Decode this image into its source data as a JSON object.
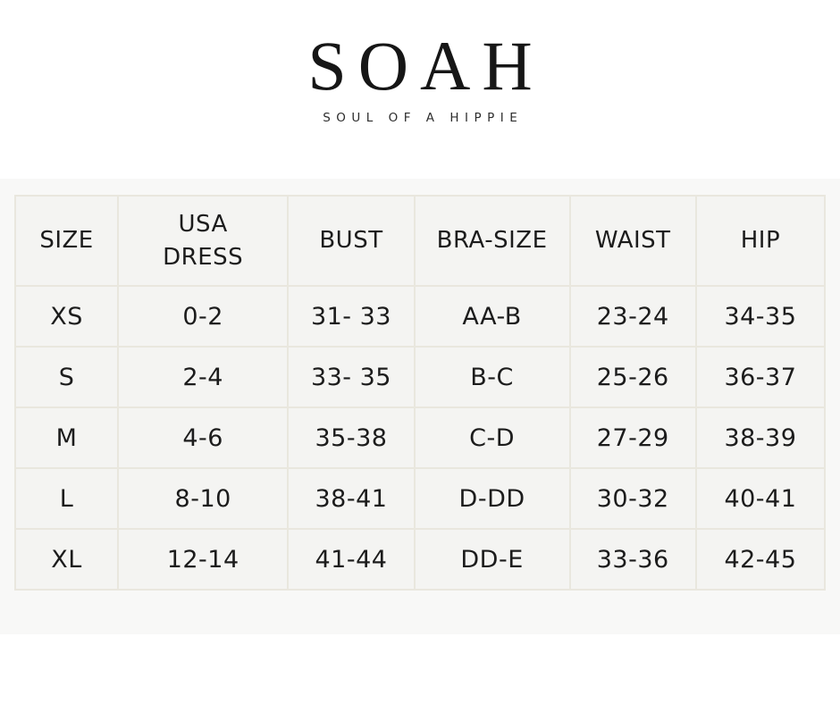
{
  "brand": {
    "logo": "SOAH",
    "tagline": "SOUL OF A HIPPIE"
  },
  "chart_data": {
    "type": "table",
    "columns": [
      "SIZE",
      "USA\nDRESS",
      "BUST",
      "BRA-SIZE",
      "WAIST",
      "HIP"
    ],
    "rows": [
      [
        "XS",
        "0-2",
        "31- 33",
        "AA-B",
        "23-24",
        "34-35"
      ],
      [
        "S",
        "2-4",
        "33- 35",
        "B-C",
        "25-26",
        "36-37"
      ],
      [
        "M",
        "4-6",
        "35-38",
        "C-D",
        "27-29",
        "38-39"
      ],
      [
        "L",
        "8-10",
        "38-41",
        "D-DD",
        "30-32",
        "40-41"
      ],
      [
        "XL",
        "12-14",
        "41-44",
        "DD-E",
        "33-36",
        "42-45"
      ]
    ]
  },
  "colors": {
    "page_bg": "#ffffff",
    "band_bg": "#f8f8f7",
    "cell_bg": "#f4f4f2",
    "cell_border": "#e9e7de",
    "text": "#1c1c1c"
  }
}
